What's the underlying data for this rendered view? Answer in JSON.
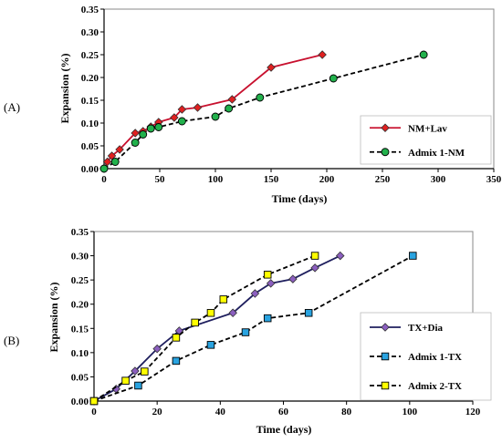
{
  "chart_data": [
    {
      "type": "line",
      "panel_label": "(A)",
      "xlabel": "Time (days)",
      "ylabel": "Expansion (%)",
      "xlim": [
        0,
        350
      ],
      "ylim": [
        0,
        0.35
      ],
      "xticks": [
        0,
        50,
        100,
        150,
        200,
        250,
        300,
        350
      ],
      "yticks": [
        "0.00",
        "0.05",
        "0.10",
        "0.15",
        "0.20",
        "0.25",
        "0.30",
        "0.35"
      ],
      "grid": false,
      "legend_position": "bottom-right",
      "series": [
        {
          "name": "NM+Lav",
          "color": "#c8102e",
          "marker": "diamond",
          "marker_fill": "#e02020",
          "line_style": "solid",
          "x": [
            0,
            3,
            7,
            14,
            28,
            35,
            42,
            49,
            63,
            70,
            84,
            115,
            150,
            196
          ],
          "y": [
            0.0,
            0.015,
            0.028,
            0.042,
            0.078,
            0.082,
            0.092,
            0.102,
            0.112,
            0.13,
            0.134,
            0.152,
            0.222,
            0.25
          ]
        },
        {
          "name": "Admix 1-NM",
          "color": "#000000",
          "marker": "circle",
          "marker_fill": "#22b14c",
          "line_style": "dashed",
          "x": [
            0,
            10,
            28,
            35,
            42,
            49,
            70,
            100,
            112,
            140,
            206,
            287
          ],
          "y": [
            0.0,
            0.015,
            0.057,
            0.075,
            0.088,
            0.091,
            0.104,
            0.114,
            0.132,
            0.156,
            0.198,
            0.25
          ]
        }
      ]
    },
    {
      "type": "line",
      "panel_label": "(B)",
      "xlabel": "Time (days)",
      "ylabel": "Expansion (%)",
      "xlim": [
        0,
        120
      ],
      "ylim": [
        0,
        0.35
      ],
      "xticks": [
        0,
        20,
        40,
        60,
        80,
        100,
        120
      ],
      "yticks": [
        "0.00",
        "0.05",
        "0.10",
        "0.15",
        "0.20",
        "0.25",
        "0.30",
        "0.35"
      ],
      "grid": false,
      "legend_position": "bottom-right",
      "series": [
        {
          "name": "TX+Dia",
          "color": "#1f1f5e",
          "marker": "diamond",
          "marker_fill": "#8b5fbf",
          "line_style": "solid",
          "x": [
            0,
            7,
            13,
            20,
            27,
            44,
            51,
            56,
            63,
            70,
            78
          ],
          "y": [
            0.0,
            0.025,
            0.062,
            0.108,
            0.145,
            0.182,
            0.222,
            0.243,
            0.252,
            0.275,
            0.3
          ]
        },
        {
          "name": "Admix 1-TX",
          "color": "#000000",
          "marker": "square",
          "marker_fill": "#29a3e0",
          "line_style": "dashed",
          "x": [
            0,
            14,
            26,
            37,
            48,
            55,
            68,
            101
          ],
          "y": [
            0.0,
            0.032,
            0.083,
            0.116,
            0.142,
            0.171,
            0.182,
            0.3
          ]
        },
        {
          "name": "Admix 2-TX",
          "color": "#000000",
          "marker": "square",
          "marker_fill": "#ffff00",
          "line_style": "dashed",
          "x": [
            0,
            10,
            16,
            26,
            32,
            37,
            41,
            55,
            70
          ],
          "y": [
            0.0,
            0.042,
            0.061,
            0.131,
            0.162,
            0.182,
            0.21,
            0.261,
            0.3
          ]
        }
      ]
    }
  ]
}
